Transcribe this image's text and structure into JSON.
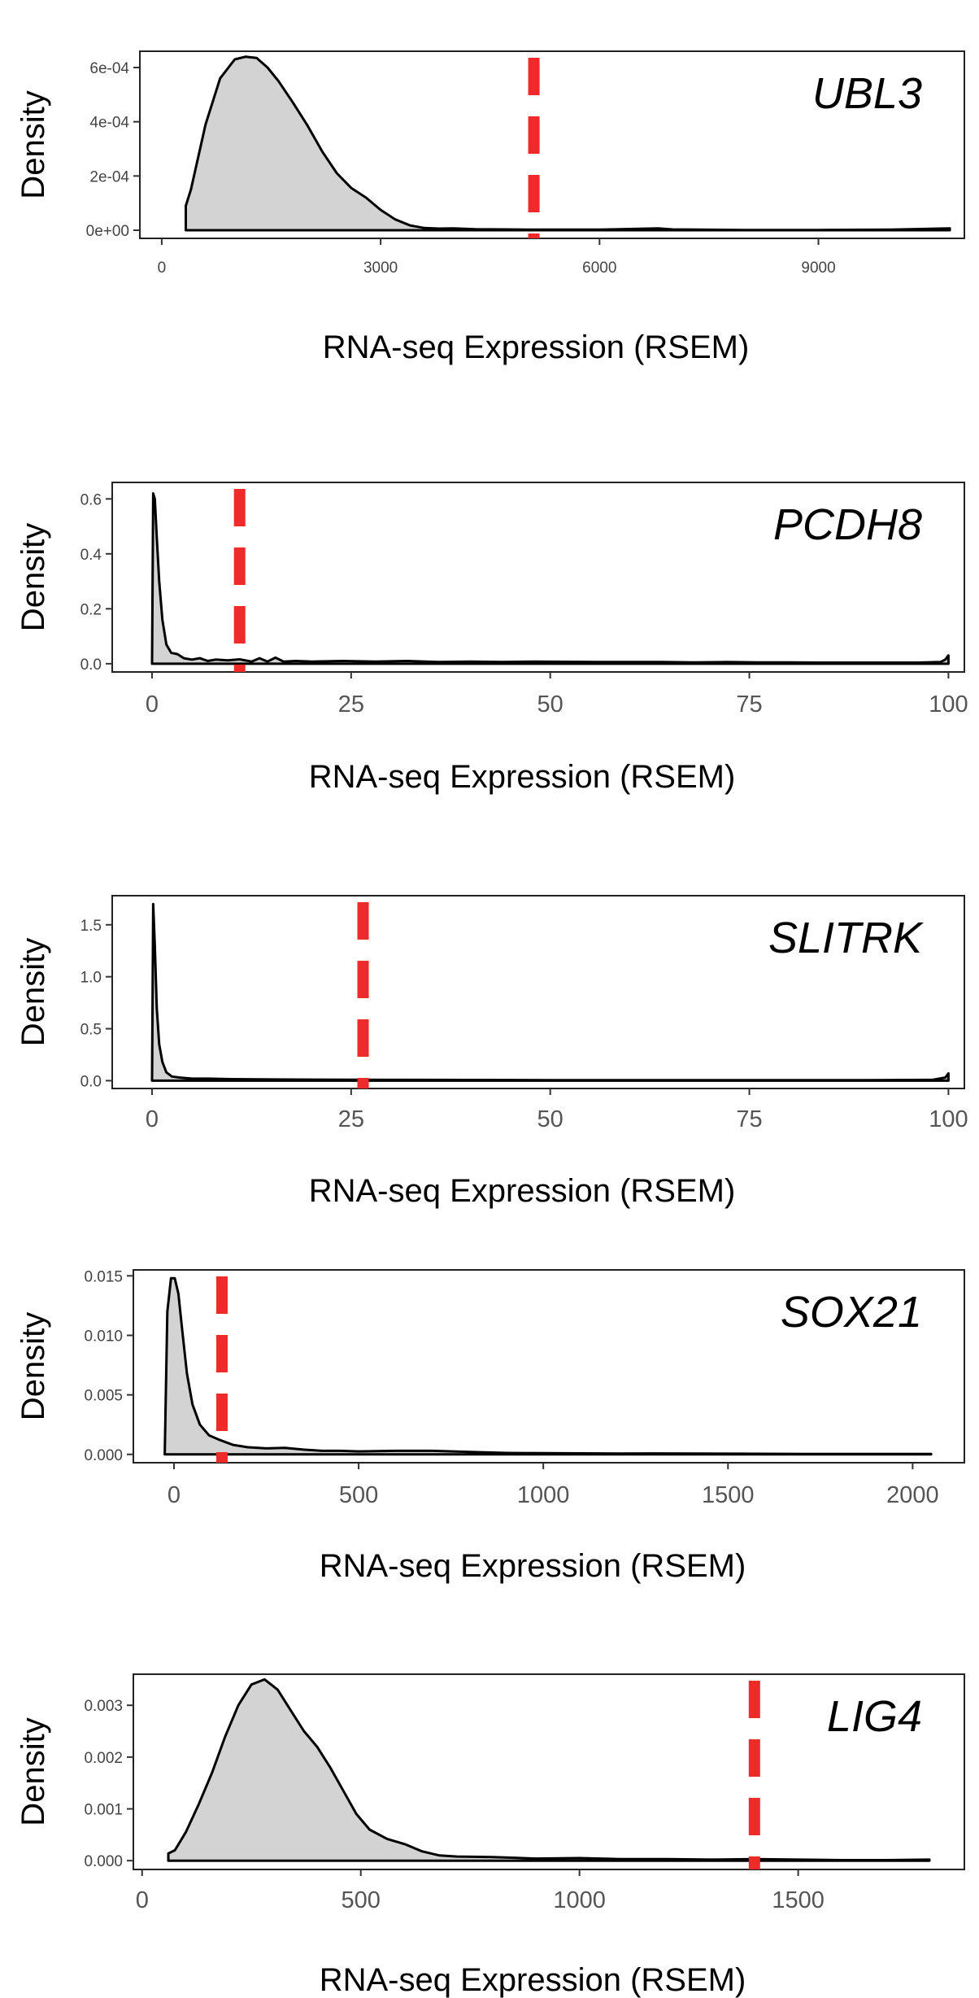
{
  "chart_data": [
    {
      "type": "area",
      "gene": "UBL3",
      "xlabel": "RNA-seq Expression (RSEM)",
      "ylabel": "Density",
      "xlim": [
        -300,
        11000
      ],
      "ylim": [
        -3e-05,
        0.00066
      ],
      "xticks": [
        0,
        3000,
        6000,
        9000
      ],
      "xtick_labels": [
        "0",
        "3000",
        "6000",
        "9000"
      ],
      "yticks": [
        0,
        0.0002,
        0.0004,
        0.0006
      ],
      "ytick_labels": [
        "0e+00",
        "2e-04",
        "4e-04",
        "6e-04"
      ],
      "reference_line": 5100,
      "x": [
        330,
        400,
        600,
        800,
        1000,
        1150,
        1300,
        1450,
        1600,
        1800,
        2000,
        2200,
        2400,
        2600,
        2800,
        3000,
        3200,
        3400,
        3600,
        3800,
        4000,
        4300,
        4700,
        5000,
        6000,
        6800,
        7000,
        8000,
        9000,
        10000,
        10800
      ],
      "y": [
        9e-05,
        0.00015,
        0.00039,
        0.00056,
        0.00063,
        0.00064,
        0.000635,
        0.0006,
        0.00055,
        0.00047,
        0.000385,
        0.00029,
        0.00021,
        0.000155,
        0.00012,
        7.5e-05,
        4e-05,
        1.8e-05,
        8e-06,
        6e-06,
        7e-06,
        4e-06,
        3e-06,
        2e-06,
        2e-06,
        7e-06,
        3e-06,
        1e-06,
        1e-06,
        2e-06,
        7e-06
      ]
    },
    {
      "type": "area",
      "gene": "PCDH8",
      "xlabel": "RNA-seq Expression (RSEM)",
      "ylabel": "Density",
      "xlim": [
        -5,
        102
      ],
      "ylim": [
        -0.03,
        0.66
      ],
      "xticks": [
        0,
        25,
        50,
        75,
        100
      ],
      "xtick_labels": [
        "0",
        "25",
        "50",
        "75",
        "100"
      ],
      "yticks": [
        0,
        0.2,
        0.4,
        0.6
      ],
      "ytick_labels": [
        "0.0",
        "0.2",
        "0.4",
        "0.6"
      ],
      "reference_line": 11,
      "x": [
        0,
        0.15,
        0.35,
        0.6,
        0.9,
        1.3,
        1.8,
        2.4,
        3.2,
        4,
        5,
        6,
        7,
        8,
        9.5,
        11,
        12.5,
        13.5,
        14.5,
        15.5,
        16.5,
        18,
        20,
        24,
        28,
        32,
        36,
        40,
        44,
        48,
        52,
        56,
        60,
        64,
        68,
        72,
        76,
        80,
        84,
        88,
        92,
        96,
        99,
        99.6,
        100
      ],
      "y": [
        0.0,
        0.62,
        0.6,
        0.46,
        0.3,
        0.16,
        0.07,
        0.04,
        0.035,
        0.02,
        0.015,
        0.02,
        0.01,
        0.015,
        0.012,
        0.016,
        0.008,
        0.02,
        0.008,
        0.022,
        0.008,
        0.01,
        0.008,
        0.01,
        0.008,
        0.01,
        0.006,
        0.008,
        0.006,
        0.008,
        0.007,
        0.006,
        0.006,
        0.006,
        0.005,
        0.006,
        0.005,
        0.005,
        0.004,
        0.004,
        0.004,
        0.004,
        0.006,
        0.015,
        0.03
      ]
    },
    {
      "type": "area",
      "gene": "SLITRK",
      "xlabel": "RNA-seq Expression (RSEM)",
      "ylabel": "Density",
      "xlim": [
        -5,
        102
      ],
      "ylim": [
        -0.075,
        1.78
      ],
      "xticks": [
        0,
        25,
        50,
        75,
        100
      ],
      "xtick_labels": [
        "0",
        "25",
        "50",
        "75",
        "100"
      ],
      "yticks": [
        0,
        0.5,
        1.0,
        1.5
      ],
      "ytick_labels": [
        "0.0",
        "0.5",
        "1.0",
        "1.5"
      ],
      "reference_line": 26.5,
      "x": [
        0,
        0.15,
        0.35,
        0.6,
        0.9,
        1.3,
        1.8,
        2.5,
        3.5,
        5,
        7,
        10,
        15,
        20,
        30,
        40,
        50,
        60,
        70,
        80,
        90,
        98,
        99.6,
        100
      ],
      "y": [
        0.0,
        1.7,
        1.3,
        0.7,
        0.35,
        0.18,
        0.08,
        0.04,
        0.03,
        0.02,
        0.02,
        0.015,
        0.012,
        0.01,
        0.008,
        0.007,
        0.006,
        0.006,
        0.006,
        0.006,
        0.006,
        0.008,
        0.03,
        0.07
      ]
    },
    {
      "type": "area",
      "gene": "SOX21",
      "xlabel": "RNA-seq Expression (RSEM)",
      "ylabel": "Density",
      "xlim": [
        -110,
        2140
      ],
      "ylim": [
        -0.0007,
        0.0155
      ],
      "xticks": [
        0,
        500,
        1000,
        1500,
        2000
      ],
      "xtick_labels": [
        "0",
        "500",
        "1000",
        "1500",
        "2000"
      ],
      "yticks": [
        0,
        0.005,
        0.01,
        0.015
      ],
      "ytick_labels": [
        "0.000",
        "0.005",
        "0.010",
        "0.015"
      ],
      "reference_line": 130,
      "x": [
        -25,
        -18,
        -8,
        2,
        12,
        22,
        35,
        50,
        70,
        95,
        125,
        160,
        200,
        250,
        300,
        350,
        400,
        450,
        500,
        600,
        700,
        800,
        900,
        1000,
        1200,
        1300,
        1500,
        1700,
        2000,
        2050
      ],
      "y": [
        0.0,
        0.012,
        0.0148,
        0.0148,
        0.0135,
        0.0105,
        0.0068,
        0.0042,
        0.0025,
        0.0016,
        0.0012,
        0.0008,
        0.0006,
        0.0005,
        0.00055,
        0.0004,
        0.0003,
        0.0003,
        0.00025,
        0.0003,
        0.0003,
        0.0002,
        0.00012,
        0.0001,
        7e-05,
        8e-05,
        6e-05,
        4e-05,
        4e-05,
        4e-05
      ]
    },
    {
      "type": "area",
      "gene": "LIG4",
      "xlabel": "RNA-seq Expression (RSEM)",
      "ylabel": "Density",
      "xlim": [
        -20,
        1880
      ],
      "ylim": [
        -0.00017,
        0.0036
      ],
      "xticks": [
        0,
        500,
        1000,
        1500
      ],
      "xtick_labels": [
        "0",
        "500",
        "1000",
        "1500"
      ],
      "yticks": [
        0,
        0.001,
        0.002,
        0.003
      ],
      "ytick_labels": [
        "0.000",
        "0.001",
        "0.002",
        "0.003"
      ],
      "reference_line": 1400,
      "x": [
        60,
        75,
        100,
        130,
        160,
        190,
        220,
        250,
        280,
        310,
        340,
        370,
        400,
        430,
        460,
        490,
        520,
        560,
        600,
        640,
        680,
        720,
        800,
        900,
        1000,
        1100,
        1200,
        1300,
        1400,
        1500,
        1600,
        1700,
        1800
      ],
      "y": [
        0.00014,
        0.0002,
        0.00055,
        0.0011,
        0.0017,
        0.0024,
        0.003,
        0.0034,
        0.0035,
        0.0033,
        0.0029,
        0.0025,
        0.0022,
        0.0018,
        0.00135,
        0.0009,
        0.0006,
        0.00042,
        0.00032,
        0.00018,
        0.0001,
        8e-05,
        7e-05,
        4e-05,
        5e-05,
        3e-05,
        3e-05,
        2e-05,
        3e-05,
        2e-05,
        1e-05,
        1e-05,
        2e-05
      ]
    }
  ]
}
